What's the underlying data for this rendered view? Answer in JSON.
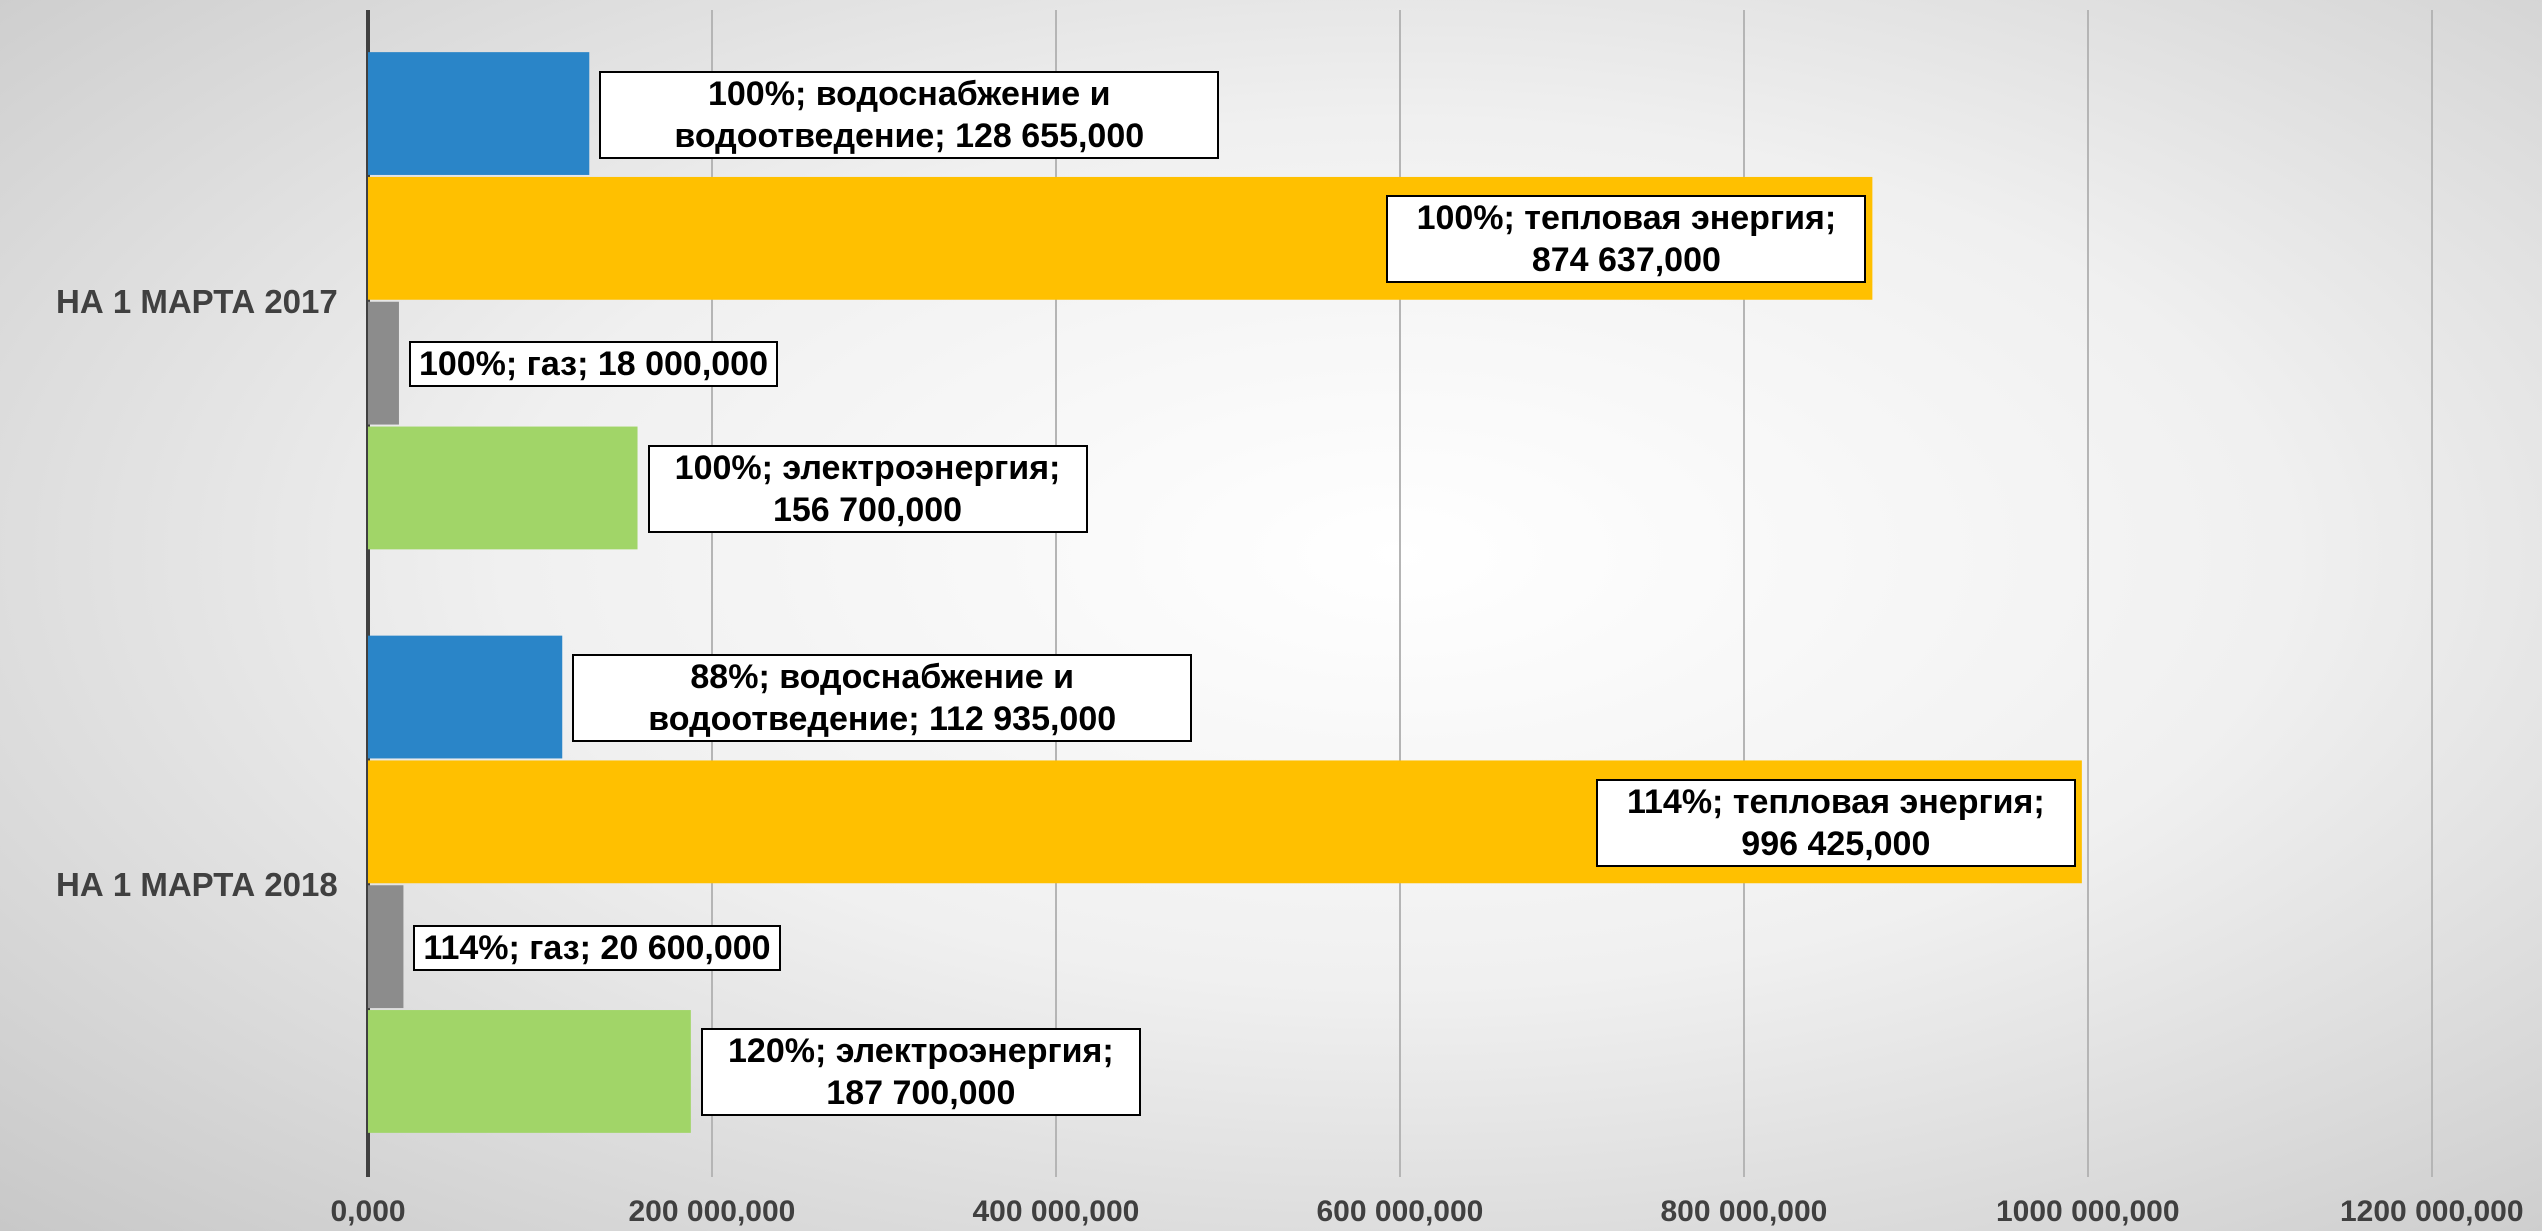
{
  "chart_data": {
    "type": "hbar",
    "categories": [
      "НА 1 МАРТА 2017",
      "НА 1 МАРТА 2018"
    ],
    "series": [
      {
        "name": "водоснабжение и водоотведение",
        "color": "#2a85c8",
        "values": [
          128655,
          112935
        ],
        "value_labels": [
          "100%; водоснабжение и водоотведение; 128 655,000",
          "88%; водоснабжение и водоотведение; 112 935,000"
        ]
      },
      {
        "name": "тепловая энергия",
        "color": "#ffc000",
        "values": [
          874637,
          996425
        ],
        "value_labels": [
          "100%; тепловая энергия; 874 637,000",
          "114%; тепловая энергия; 996 425,000"
        ]
      },
      {
        "name": "газ",
        "color": "#8c8c8c",
        "values": [
          18000,
          20600
        ],
        "value_labels": [
          "100%; газ; 18 000,000",
          "114%; газ; 20 600,000"
        ]
      },
      {
        "name": "электроэнергия",
        "color": "#a1d568",
        "values": [
          156700,
          187700
        ],
        "value_labels": [
          "100%; электроэнергия; 156 700,000",
          "120%; электроэнергия; 187 700,000"
        ]
      }
    ],
    "xlim": [
      0,
      1200000
    ],
    "xticks": [
      {
        "value": 0,
        "label": "0,000"
      },
      {
        "value": 200000,
        "label": "200 000,000"
      },
      {
        "value": 400000,
        "label": "400 000,000"
      },
      {
        "value": 600000,
        "label": "600 000,000"
      },
      {
        "value": 800000,
        "label": "800 000,000"
      },
      {
        "value": 1000000,
        "label": "1000 000,000"
      },
      {
        "value": 1200000,
        "label": "1200 000,000"
      }
    ],
    "grid": true
  }
}
